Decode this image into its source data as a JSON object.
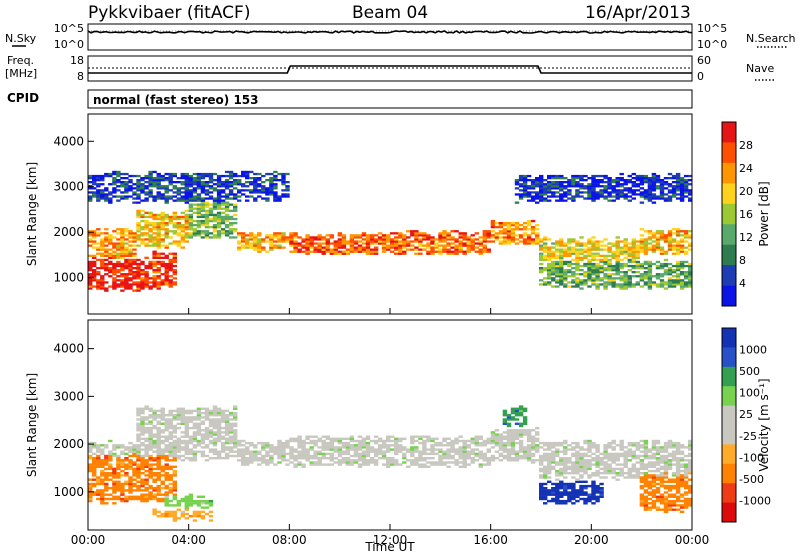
{
  "header": {
    "radar": "Pykkvibaer (fitACF)",
    "beam": "Beam 04",
    "date": "16/Apr/2013"
  },
  "top_panels": {
    "nsky_label": "N.Sky",
    "nsky_ticks": [
      "10^5",
      "10^0"
    ],
    "nsearch_label": "N.Search",
    "nsearch_ticks": [
      "10^5",
      "10^0"
    ],
    "freq_label": "Freq.",
    "freq_unit": "[MHz]",
    "freq_ticks": [
      "18",
      "8"
    ],
    "nave_label": "Nave",
    "nave_ticks": [
      "60",
      "0"
    ],
    "cpid_label": "CPID",
    "cpid_text": "normal (fast stereo) 153"
  },
  "colors": {
    "power": [
      "#0a14e6",
      "#1e3cb4",
      "#2e7d50",
      "#5aa96c",
      "#9cc832",
      "#ffd21e",
      "#ff9600",
      "#ff5000",
      "#e61414"
    ],
    "velocity": [
      "#1432b4",
      "#2850c8",
      "#32a050",
      "#78d250",
      "#c8c8c0",
      "#c8c8c0",
      "#ffaa28",
      "#ff8200",
      "#f03c14",
      "#dc0a0a"
    ]
  },
  "chart_data": [
    {
      "type": "heatmap",
      "name": "Power",
      "ylabel": "Slant Range [km]",
      "ylim": [
        200,
        4600
      ],
      "yticks": [
        "1000",
        "2000",
        "3000",
        "4000"
      ],
      "xlim": [
        0,
        24
      ],
      "colorbar_label": "Power [dB]",
      "colorbar_ticks": [
        "4",
        "8",
        "12",
        "16",
        "20",
        "24",
        "28"
      ],
      "bands": [
        {
          "t0": 0.0,
          "t1": 2.0,
          "r0": 1450,
          "r1": 2000,
          "level": 0.72
        },
        {
          "t0": 2.0,
          "t1": 4.0,
          "r0": 1700,
          "r1": 2400,
          "level": 0.65
        },
        {
          "t0": 4.0,
          "t1": 6.0,
          "r0": 1900,
          "r1": 2600,
          "level": 0.45
        },
        {
          "t0": 6.0,
          "t1": 8.0,
          "r0": 1600,
          "r1": 1900,
          "level": 0.7
        },
        {
          "t0": 8.0,
          "t1": 12.0,
          "r0": 1550,
          "r1": 1900,
          "level": 0.82
        },
        {
          "t0": 12.0,
          "t1": 16.0,
          "r0": 1550,
          "r1": 1950,
          "level": 0.8
        },
        {
          "t0": 16.0,
          "t1": 18.0,
          "r0": 1750,
          "r1": 2200,
          "level": 0.75
        },
        {
          "t0": 18.0,
          "t1": 22.0,
          "r0": 1350,
          "r1": 1800,
          "level": 0.6
        },
        {
          "t0": 22.0,
          "t1": 24.0,
          "r0": 1550,
          "r1": 2000,
          "level": 0.65
        },
        {
          "t0": 0.0,
          "t1": 2.5,
          "r0": 750,
          "r1": 1350,
          "level": 0.95
        },
        {
          "t0": 2.5,
          "t1": 3.5,
          "r0": 800,
          "r1": 1500,
          "level": 0.9
        },
        {
          "t0": 18.0,
          "t1": 24.0,
          "r0": 800,
          "r1": 1300,
          "level": 0.4
        },
        {
          "t0": 0.0,
          "t1": 8.0,
          "r0": 2700,
          "r1": 3250,
          "level": 0.15
        },
        {
          "t0": 17.0,
          "t1": 24.0,
          "r0": 2700,
          "r1": 3200,
          "level": 0.1
        }
      ]
    },
    {
      "type": "heatmap",
      "name": "Velocity",
      "ylabel": "Slant Range [km]",
      "ylim": [
        200,
        4600
      ],
      "yticks": [
        "1000",
        "2000",
        "3000",
        "4000"
      ],
      "xlim": [
        0,
        24
      ],
      "xticks": [
        "00:00",
        "04:00",
        "08:00",
        "12:00",
        "16:00",
        "20:00",
        "00:00"
      ],
      "xlabel": "Time UT",
      "colorbar_label": "Velocity [m s⁻¹]",
      "colorbar_ticks": [
        "1000",
        "500",
        "100",
        "25",
        "-25",
        "-100",
        "-500",
        "-1000"
      ],
      "bands": [
        {
          "t0": 0.0,
          "t1": 2.0,
          "r0": 1450,
          "r1": 2000,
          "level": 4
        },
        {
          "t0": 2.0,
          "t1": 6.0,
          "r0": 1700,
          "r1": 2700,
          "level": 4
        },
        {
          "t0": 6.0,
          "t1": 8.0,
          "r0": 1600,
          "r1": 2000,
          "level": 4
        },
        {
          "t0": 8.0,
          "t1": 16.0,
          "r0": 1550,
          "r1": 2100,
          "level": 4
        },
        {
          "t0": 16.0,
          "t1": 18.0,
          "r0": 1650,
          "r1": 2250,
          "level": 4
        },
        {
          "t0": 18.0,
          "t1": 24.0,
          "r0": 1300,
          "r1": 2000,
          "level": 4
        },
        {
          "t0": 0.0,
          "t1": 3.5,
          "r0": 800,
          "r1": 1700,
          "level": 7
        },
        {
          "t0": 3.0,
          "t1": 5.0,
          "r0": 700,
          "r1": 850,
          "level": 3
        },
        {
          "t0": 2.5,
          "t1": 5.0,
          "r0": 450,
          "r1": 550,
          "level": 6
        },
        {
          "t0": 18.0,
          "t1": 20.5,
          "r0": 800,
          "r1": 1150,
          "level": 0
        },
        {
          "t0": 16.5,
          "t1": 17.5,
          "r0": 2400,
          "r1": 2700,
          "level": 2
        },
        {
          "t0": 22.0,
          "t1": 24.0,
          "r0": 600,
          "r1": 1300,
          "level": 7
        }
      ]
    }
  ]
}
